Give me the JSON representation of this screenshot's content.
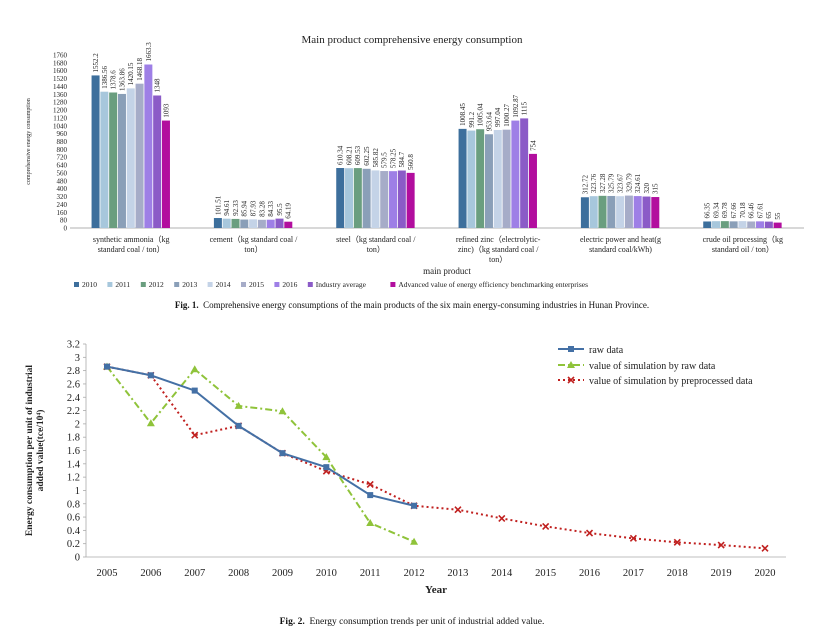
{
  "colors": {
    "series": [
      "#3d6f9c",
      "#a7c7dc",
      "#6a9e7f",
      "#8a9fb8",
      "#c4d3e7",
      "#a6acc8",
      "#9e7fe6",
      "#8b5bc7",
      "#b20e9e"
    ],
    "raw": "#4470a5",
    "sim_raw": "#8fc33a",
    "sim_pre": "#c0201f"
  },
  "chart_data": [
    {
      "type": "bar",
      "title": "Main product comprehensive energy consumption",
      "xlabel": "main product",
      "ylabel": "comprehensive energy consumption",
      "ylim": [
        0,
        1760
      ],
      "yticks": [
        0,
        80,
        160,
        240,
        320,
        400,
        480,
        560,
        640,
        720,
        800,
        880,
        960,
        1040,
        1120,
        1200,
        1280,
        1360,
        1440,
        1520,
        1600,
        1680,
        1760
      ],
      "categories": [
        [
          "synthetic ammonia（kg",
          "standard coal / ton）"
        ],
        [
          "cement（kg standard coal /",
          "ton）"
        ],
        [
          "steel（kg standard coal /",
          "ton）"
        ],
        [
          "refined zinc（electrolytic-",
          "zinc)（kg standard coal /",
          "ton）"
        ],
        [
          "electric power and heat(g",
          "standard coal/kWh)"
        ],
        [
          "crude oil processing（kg",
          "standard oil / ton）"
        ]
      ],
      "series": [
        {
          "name": "2010",
          "values": [
            1552.2,
            101.51,
            610.34,
            1008.45,
            312.72,
            66.35
          ]
        },
        {
          "name": "2011",
          "values": [
            1386.56,
            94.61,
            608.21,
            991.2,
            323.76,
            69.34
          ]
        },
        {
          "name": "2012",
          "values": [
            1378.6,
            92.33,
            609.53,
            1005.04,
            327.28,
            69.78
          ]
        },
        {
          "name": "2013",
          "values": [
            1363.86,
            85.94,
            602.25,
            953.64,
            325.79,
            67.66
          ]
        },
        {
          "name": "2014",
          "values": [
            1420.15,
            87.93,
            585.82,
            997.04,
            323.67,
            70.18
          ]
        },
        {
          "name": "2015",
          "values": [
            1468.18,
            83.28,
            579.5,
            1000.27,
            329.79,
            66.46
          ]
        },
        {
          "name": "2016",
          "values": [
            1663.3,
            84.33,
            578.25,
            1092.87,
            324.61,
            67.61
          ]
        },
        {
          "name": "Industry average",
          "values": [
            1348,
            95.5,
            584.7,
            1115,
            320,
            65
          ]
        },
        {
          "name": "Advanced value of energy efficiency benchmarking enterprises",
          "values": [
            1093,
            64.19,
            560.8,
            754,
            315,
            55
          ]
        }
      ],
      "legend_position": "bottom",
      "caption_label": "Fig. 1.",
      "caption": "Comprehensive energy consumptions of the main products of the six main energy-consuming industries in Hunan Province."
    },
    {
      "type": "line",
      "xlabel": "Year",
      "ylabel": [
        "Energy consumption per unit of industrial",
        "added value(tce/10⁴)"
      ],
      "ylim": [
        0,
        3.2
      ],
      "yticks": [
        0,
        0.2,
        0.4,
        0.6,
        0.8,
        1,
        1.2,
        1.4,
        1.6,
        1.8,
        2,
        2.2,
        2.4,
        2.6,
        2.8,
        3,
        3.2
      ],
      "x": [
        2005,
        2006,
        2007,
        2008,
        2009,
        2010,
        2011,
        2012,
        2013,
        2014,
        2015,
        2016,
        2017,
        2018,
        2019,
        2020
      ],
      "series": [
        {
          "name": "raw data",
          "x": [
            2005,
            2006,
            2007,
            2008,
            2009,
            2010,
            2011,
            2012
          ],
          "values": [
            2.86,
            2.73,
            2.5,
            1.97,
            1.56,
            1.35,
            0.93,
            0.77
          ]
        },
        {
          "name": "value of simulation by raw data",
          "x": [
            2005,
            2006,
            2007,
            2008,
            2009,
            2010,
            2011,
            2012
          ],
          "values": [
            2.86,
            2.01,
            2.82,
            2.27,
            2.19,
            1.5,
            0.51,
            0.23
          ]
        },
        {
          "name": "value of simulation by preprocessed data",
          "x": [
            2005,
            2006,
            2007,
            2008,
            2009,
            2010,
            2011,
            2012,
            2013,
            2014,
            2015,
            2016,
            2017,
            2018,
            2019,
            2020
          ],
          "values": [
            2.86,
            2.73,
            1.83,
            1.97,
            1.56,
            1.29,
            1.09,
            0.77,
            0.71,
            0.58,
            0.46,
            0.36,
            0.28,
            0.22,
            0.18,
            0.13
          ]
        }
      ],
      "legend_position": "top-right",
      "grid": false,
      "caption_label": "Fig. 2.",
      "caption": "Energy consumption trends per unit of industrial added value."
    }
  ]
}
